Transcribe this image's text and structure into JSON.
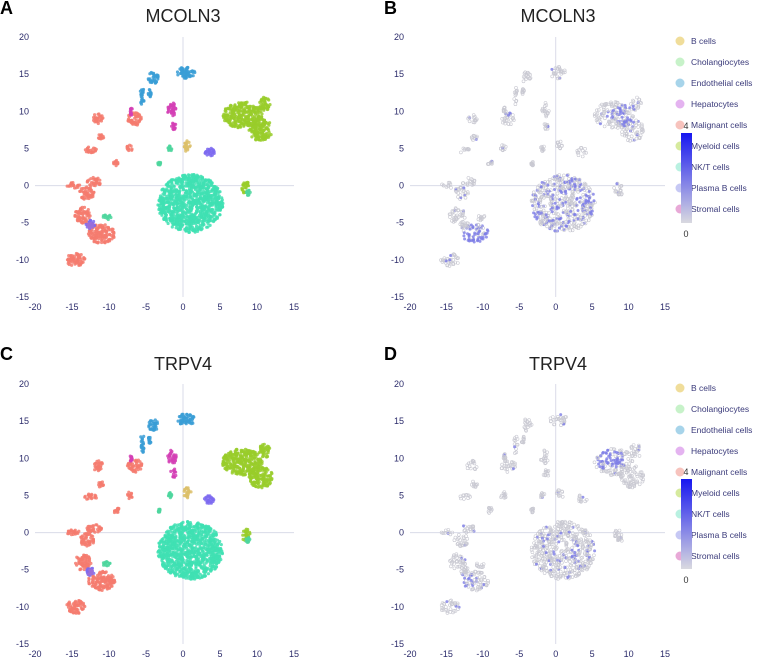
{
  "chart_data": [
    {
      "id": "A",
      "type": "scatter",
      "title": "MCOLN3",
      "color_mode": "cluster",
      "xlim": [
        -20,
        15
      ],
      "ylim": [
        -15,
        20
      ],
      "xticks": [
        "-20",
        "-15",
        "-10",
        "-5",
        "0",
        "5",
        "10",
        "15"
      ],
      "yticks": [
        "20",
        "15",
        "10",
        "5",
        "0",
        "-5",
        "-10",
        "-15"
      ],
      "clusters": [
        {
          "name": "NK/T cells",
          "color": "#3fe0b3",
          "regions": [
            [
              1,
              -2.4,
              4.4,
              3.9
            ]
          ]
        },
        {
          "name": "Myeloid cells",
          "color": "#99cc2a",
          "regions": [
            [
              8,
              9.5,
              2.7,
              1.8
            ],
            [
              10.5,
              7.5,
              1.6,
              1.5
            ],
            [
              11,
              11,
              0.8,
              0.9
            ],
            [
              8.5,
              -0.3,
              0.6,
              0.8
            ]
          ]
        },
        {
          "name": "Malignant cells",
          "color": "#f47b6f",
          "regions": [
            [
              -14.5,
              -10,
              1.3,
              0.9
            ],
            [
              -11,
              -6.5,
              1.8,
              1.3
            ],
            [
              -13.5,
              -4,
              1.1,
              1.1
            ],
            [
              -13,
              -1,
              1,
              0.9
            ],
            [
              -14.8,
              0,
              0.9,
              0.4
            ],
            [
              -12,
              0.5,
              1,
              0.6
            ],
            [
              -12.5,
              4.8,
              0.9,
              0.4
            ],
            [
              -11.5,
              9,
              0.7,
              0.7
            ],
            [
              -6.5,
              9,
              1,
              0.9
            ],
            [
              -11.2,
              6.5,
              0.5,
              0.4
            ],
            [
              -9,
              3,
              0.4,
              0.4
            ],
            [
              -7.2,
              5,
              0.4,
              0.5
            ]
          ]
        },
        {
          "name": "Endothelial cells",
          "color": "#3a9ed6",
          "regions": [
            [
              0.4,
              15.2,
              1.2,
              0.8
            ],
            [
              -4,
              14.5,
              0.7,
              0.8
            ],
            [
              -5.5,
              12,
              0.3,
              1.4
            ],
            [
              -4.5,
              12.4,
              0.2,
              0.6
            ]
          ]
        },
        {
          "name": "Stromal cells",
          "color": "#d340b5",
          "regions": [
            [
              -1.5,
              10.2,
              0.6,
              1.0
            ],
            [
              -1.3,
              8,
              0.4,
              0.6
            ],
            [
              -7,
              10,
              0.2,
              0.6
            ]
          ]
        },
        {
          "name": "Plasma B cells",
          "color": "#7c6af0",
          "regions": [
            [
              3.6,
              4.5,
              0.7,
              0.6
            ],
            [
              -12.5,
              -5.2,
              0.6,
              0.6
            ]
          ]
        },
        {
          "name": "B cells",
          "color": "#dcc06a",
          "regions": [
            [
              0.6,
              5.3,
              0.5,
              0.8
            ]
          ]
        },
        {
          "name": "Cholangiocytes",
          "color": "#4dd69d",
          "regions": [
            [
              -10.3,
              -4.3,
              0.6,
              0.4
            ],
            [
              -1.8,
              5,
              0.3,
              0.4
            ],
            [
              -3.2,
              3,
              0.2,
              0.3
            ],
            [
              8.8,
              -1,
              0.3,
              0.4
            ]
          ]
        },
        {
          "name": "Hepatocytes",
          "color": "#9b6ed8",
          "regions": [
            [
              -12.5,
              -5.4,
              0.4,
              0.4
            ]
          ]
        }
      ]
    },
    {
      "id": "B",
      "type": "scatter",
      "title": "MCOLN3",
      "color_mode": "expression",
      "xlim": [
        -20,
        15
      ],
      "ylim": [
        -15,
        20
      ],
      "xticks": [
        "-20",
        "-15",
        "-10",
        "-5",
        "0",
        "5",
        "10",
        "15"
      ],
      "yticks": [
        "20",
        "15",
        "10",
        "5",
        "0",
        "-5",
        "-10",
        "-15"
      ],
      "colorbar": {
        "min": "0",
        "max": "4",
        "low_color": "#d9d9e0",
        "high_color": "#1717f0"
      },
      "highlight": [
        [
          -11,
          -6.5,
          1.8,
          1.3,
          0.75
        ],
        [
          1,
          -2.4,
          4.4,
          3.9,
          0.35
        ],
        [
          9.5,
          9.5,
          2.5,
          1.5,
          0.45
        ],
        [
          -7,
          10,
          1,
          0.8,
          0.3
        ]
      ]
    },
    {
      "id": "C",
      "type": "scatter",
      "title": "TRPV4",
      "color_mode": "cluster",
      "xlim": [
        -20,
        15
      ],
      "ylim": [
        -15,
        20
      ],
      "xticks": [
        "-20",
        "-15",
        "-10",
        "-5",
        "0",
        "5",
        "10",
        "15"
      ],
      "yticks": [
        "20",
        "15",
        "10",
        "5",
        "0",
        "-5",
        "-10",
        "-15"
      ]
    },
    {
      "id": "D",
      "type": "scatter",
      "title": "TRPV4",
      "color_mode": "expression",
      "xlim": [
        -20,
        15
      ],
      "ylim": [
        -15,
        20
      ],
      "xticks": [
        "-20",
        "-15",
        "-10",
        "-5",
        "0",
        "5",
        "10",
        "15"
      ],
      "yticks": [
        "20",
        "15",
        "10",
        "5",
        "0",
        "-5",
        "-10",
        "-15"
      ],
      "colorbar": {
        "min": "0",
        "max": "4",
        "low_color": "#d9d9e0",
        "high_color": "#1717f0"
      },
      "highlight": [
        [
          7.5,
          9.8,
          2.2,
          1.4,
          0.75
        ],
        [
          -12.2,
          -6.5,
          1.5,
          1.1,
          0.55
        ],
        [
          -6,
          11,
          1,
          0.8,
          0.35
        ],
        [
          1,
          -2.4,
          4.4,
          3.9,
          0.15
        ]
      ]
    }
  ],
  "legend": [
    {
      "label": "B cells",
      "color": "#f0dd9a"
    },
    {
      "label": "Cholangiocytes",
      "color": "#c7f2c9"
    },
    {
      "label": "Endothelial cells",
      "color": "#a7d4ea"
    },
    {
      "label": "Hepatocytes",
      "color": "#e4b3f0"
    },
    {
      "label": "Malignant cells",
      "color": "#f7c3bd"
    },
    {
      "label": "Myeloid cells",
      "color": "#d6ea9e"
    },
    {
      "label": "NK/T cells",
      "color": "#b9f1e1"
    },
    {
      "label": "Plasma B cells",
      "color": "#c6c8f4"
    },
    {
      "label": "Stromal cells",
      "color": "#e8a9d7"
    }
  ]
}
